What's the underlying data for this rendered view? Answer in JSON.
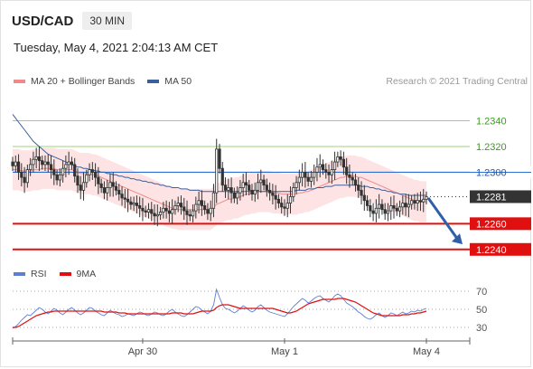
{
  "header": {
    "symbol": "USD/CAD",
    "timeframe": "30 MIN",
    "datetime": "Tuesday, May 4, 2021 2:04:13 AM CET"
  },
  "legend": {
    "items": [
      {
        "label": "MA 20 + Bollinger Bands",
        "color": "#f08a8a"
      },
      {
        "label": "MA 50",
        "color": "#3b5f9b"
      }
    ],
    "credit": "Research © 2021 Trading Central"
  },
  "rsi_legend": {
    "items": [
      {
        "label": "RSI",
        "color": "#5b7fd4"
      },
      {
        "label": "9MA",
        "color": "#e01010"
      }
    ]
  },
  "chart_data": [
    {
      "type": "candlestick",
      "ylim": [
        1.223,
        1.2365
      ],
      "levels": [
        {
          "value": 1.234,
          "label": "1.2340",
          "style": "resistance-green"
        },
        {
          "value": 1.232,
          "label": "1.2320",
          "style": "resistance-green"
        },
        {
          "value": 1.23,
          "label": "1.2300",
          "style": "pivot-blue"
        },
        {
          "value": 1.2281,
          "label": "1.2281",
          "style": "last-price"
        },
        {
          "value": 1.226,
          "label": "1.2260",
          "style": "support-red"
        },
        {
          "value": 1.224,
          "label": "1.2240",
          "style": "support-red"
        }
      ],
      "x_ticks": [
        {
          "label": "Apr 30",
          "index": 44
        },
        {
          "label": "May 1",
          "index": 92
        },
        {
          "label": "May 4",
          "index": 140
        }
      ],
      "close": [
        1.2305,
        1.2308,
        1.23,
        1.2296,
        1.2292,
        1.2302,
        1.2306,
        1.231,
        1.2312,
        1.2309,
        1.2306,
        1.2308,
        1.2306,
        1.2302,
        1.2298,
        1.2294,
        1.2298,
        1.2303,
        1.2306,
        1.2308,
        1.2306,
        1.2297,
        1.229,
        1.2286,
        1.2292,
        1.2298,
        1.2302,
        1.23,
        1.2296,
        1.2291,
        1.2288,
        1.2284,
        1.2288,
        1.2292,
        1.2289,
        1.2286,
        1.2283,
        1.228,
        1.2279,
        1.2277,
        1.2275,
        1.2276,
        1.2274,
        1.2272,
        1.227,
        1.2269,
        1.2271,
        1.2268,
        1.2266,
        1.2267,
        1.2269,
        1.2272,
        1.227,
        1.2268,
        1.2271,
        1.2274,
        1.2276,
        1.2273,
        1.227,
        1.2267,
        1.2266,
        1.227,
        1.2275,
        1.2278,
        1.2274,
        1.2271,
        1.2268,
        1.2272,
        1.2284,
        1.2318,
        1.2303,
        1.229,
        1.2286,
        1.2288,
        1.2284,
        1.228,
        1.2284,
        1.2288,
        1.2292,
        1.229,
        1.2286,
        1.2283,
        1.2286,
        1.2292,
        1.2294,
        1.229,
        1.2286,
        1.2284,
        1.2282,
        1.2279,
        1.2276,
        1.2273,
        1.2272,
        1.2276,
        1.2281,
        1.2288,
        1.2292,
        1.2296,
        1.23,
        1.2296,
        1.2293,
        1.2296,
        1.23,
        1.2304,
        1.2306,
        1.2302,
        1.23,
        1.2298,
        1.2302,
        1.2308,
        1.2312,
        1.231,
        1.2304,
        1.2298,
        1.2296,
        1.2294,
        1.229,
        1.2286,
        1.2282,
        1.2278,
        1.2274,
        1.227,
        1.2268,
        1.2272,
        1.2275,
        1.2271,
        1.2268,
        1.227,
        1.2274,
        1.2272,
        1.227,
        1.2273,
        1.2276,
        1.2273,
        1.2275,
        1.2278,
        1.2276,
        1.2278,
        1.2277,
        1.2279,
        1.2281
      ],
      "ma20": [
        1.2302,
        1.2302,
        1.2302,
        1.2301,
        1.2301,
        1.2301,
        1.2301,
        1.2302,
        1.2302,
        1.2302,
        1.2303,
        1.2303,
        1.2303,
        1.2303,
        1.2303,
        1.2302,
        1.2302,
        1.2302,
        1.2302,
        1.2302,
        1.2302,
        1.2301,
        1.23,
        1.2299,
        1.2299,
        1.2299,
        1.2299,
        1.2298,
        1.2298,
        1.2297,
        1.2296,
        1.2295,
        1.2294,
        1.2293,
        1.2292,
        1.2291,
        1.229,
        1.2289,
        1.2288,
        1.2287,
        1.2286,
        1.2285,
        1.2284,
        1.2283,
        1.2282,
        1.2281,
        1.228,
        1.2279,
        1.2278,
        1.2277,
        1.2276,
        1.2275,
        1.2274,
        1.2273,
        1.2272,
        1.2272,
        1.2271,
        1.2271,
        1.2271,
        1.2271,
        1.2271,
        1.2271,
        1.2271,
        1.2271,
        1.2271,
        1.2271,
        1.2271,
        1.2271,
        1.2273,
        1.2275,
        1.2276,
        1.2277,
        1.2278,
        1.2279,
        1.2279,
        1.228,
        1.228,
        1.2281,
        1.2282,
        1.2283,
        1.2283,
        1.2284,
        1.2284,
        1.2285,
        1.2285,
        1.2285,
        1.2285,
        1.2285,
        1.2284,
        1.2284,
        1.2284,
        1.2283,
        1.2283,
        1.2283,
        1.2283,
        1.2283,
        1.2283,
        1.2284,
        1.2284,
        1.2285,
        1.2285,
        1.2286,
        1.2287,
        1.2288,
        1.2289,
        1.229,
        1.2291,
        1.2292,
        1.2293,
        1.2294,
        1.2295,
        1.2296,
        1.2296,
        1.2297,
        1.2297,
        1.2297,
        1.2297,
        1.2296,
        1.2296,
        1.2295,
        1.2294,
        1.2293,
        1.2292,
        1.2291,
        1.229,
        1.2289,
        1.2288,
        1.2287,
        1.2286,
        1.2285,
        1.2284,
        1.2283,
        1.2282,
        1.2281,
        1.228,
        1.2279,
        1.2278,
        1.2278,
        1.2277,
        1.2277,
        1.2277
      ],
      "ma50": [
        1.2345,
        1.2342,
        1.2339,
        1.2336,
        1.2333,
        1.233,
        1.2327,
        1.2324,
        1.2322,
        1.232,
        1.2318,
        1.2316,
        1.2314,
        1.2313,
        1.2312,
        1.2311,
        1.231,
        1.2309,
        1.2308,
        1.2307,
        1.2306,
        1.2305,
        1.2304,
        1.2304,
        1.2303,
        1.2303,
        1.2302,
        1.2302,
        1.2301,
        1.2301,
        1.23,
        1.23,
        1.2299,
        1.2299,
        1.2298,
        1.2298,
        1.2297,
        1.2297,
        1.2296,
        1.2296,
        1.2295,
        1.2295,
        1.2294,
        1.2294,
        1.2293,
        1.2293,
        1.2292,
        1.2292,
        1.2291,
        1.2291,
        1.229,
        1.229,
        1.2289,
        1.2289,
        1.2288,
        1.2288,
        1.2288,
        1.2287,
        1.2287,
        1.2287,
        1.2286,
        1.2286,
        1.2286,
        1.2286,
        1.2285,
        1.2285,
        1.2285,
        1.2285,
        1.2285,
        1.2285,
        1.2285,
        1.2285,
        1.2285,
        1.2285,
        1.2285,
        1.2285,
        1.2285,
        1.2285,
        1.2285,
        1.2285,
        1.2285,
        1.2285,
        1.2285,
        1.2285,
        1.2285,
        1.2285,
        1.2285,
        1.2285,
        1.2285,
        1.2285,
        1.2285,
        1.2285,
        1.2285,
        1.2285,
        1.2285,
        1.2285,
        1.2286,
        1.2286,
        1.2286,
        1.2286,
        1.2287,
        1.2287,
        1.2287,
        1.2288,
        1.2288,
        1.2288,
        1.2289,
        1.2289,
        1.2289,
        1.229,
        1.229,
        1.229,
        1.229,
        1.229,
        1.229,
        1.229,
        1.229,
        1.229,
        1.2289,
        1.2289,
        1.2289,
        1.2288,
        1.2288,
        1.2287,
        1.2287,
        1.2286,
        1.2286,
        1.2285,
        1.2285,
        1.2284,
        1.2284,
        1.2283,
        1.2283,
        1.2283,
        1.2282,
        1.2282,
        1.2282,
        1.2282,
        1.2282,
        1.2282,
        1.2282
      ],
      "bb_width": 0.0016
    },
    {
      "type": "line",
      "ylim": [
        20,
        80
      ],
      "y_ticks": [
        70,
        50,
        30
      ],
      "series": [
        {
          "name": "RSI",
          "values": [
            29,
            31,
            34,
            38,
            41,
            44,
            43,
            46,
            49,
            52,
            50,
            47,
            45,
            48,
            51,
            49,
            46,
            44,
            47,
            50,
            52,
            49,
            46,
            44,
            46,
            49,
            52,
            51,
            48,
            46,
            44,
            43,
            46,
            49,
            47,
            45,
            44,
            42,
            43,
            45,
            44,
            43,
            45,
            47,
            46,
            44,
            43,
            45,
            47,
            46,
            44,
            43,
            45,
            48,
            50,
            47,
            45,
            43,
            42,
            44,
            47,
            50,
            53,
            52,
            49,
            47,
            45,
            48,
            55,
            72,
            63,
            55,
            51,
            50,
            48,
            46,
            48,
            51,
            54,
            52,
            49,
            47,
            49,
            53,
            55,
            52,
            49,
            47,
            46,
            45,
            44,
            43,
            42,
            45,
            49,
            53,
            56,
            59,
            62,
            60,
            57,
            59,
            62,
            64,
            65,
            62,
            60,
            58,
            61,
            65,
            67,
            65,
            61,
            57,
            55,
            53,
            50,
            47,
            45,
            42,
            40,
            39,
            41,
            44,
            46,
            43,
            41,
            43,
            46,
            45,
            43,
            45,
            47,
            45,
            46,
            48,
            47,
            49,
            48,
            50,
            51
          ]
        },
        {
          "name": "9MA",
          "values": [
            30,
            30,
            31,
            33,
            35,
            37,
            39,
            41,
            43,
            44,
            45,
            46,
            47,
            47,
            48,
            48,
            48,
            48,
            48,
            48,
            48,
            48,
            48,
            48,
            48,
            48,
            48,
            48,
            48,
            48,
            48,
            47,
            47,
            47,
            47,
            47,
            46,
            46,
            46,
            45,
            45,
            45,
            45,
            45,
            45,
            45,
            45,
            45,
            45,
            45,
            45,
            45,
            45,
            45,
            46,
            46,
            46,
            46,
            45,
            45,
            45,
            45,
            46,
            47,
            48,
            48,
            48,
            48,
            49,
            52,
            54,
            55,
            55,
            55,
            54,
            53,
            52,
            51,
            51,
            51,
            51,
            51,
            51,
            51,
            51,
            51,
            51,
            51,
            51,
            50,
            49,
            48,
            47,
            46,
            46,
            47,
            48,
            50,
            52,
            54,
            56,
            57,
            58,
            59,
            60,
            61,
            61,
            61,
            61,
            61,
            62,
            62,
            62,
            61,
            60,
            59,
            58,
            56,
            54,
            52,
            50,
            48,
            46,
            45,
            44,
            43,
            43,
            43,
            43,
            43,
            43,
            43,
            44,
            44,
            44,
            45,
            45,
            46,
            46,
            47,
            48
          ]
        }
      ]
    }
  ]
}
